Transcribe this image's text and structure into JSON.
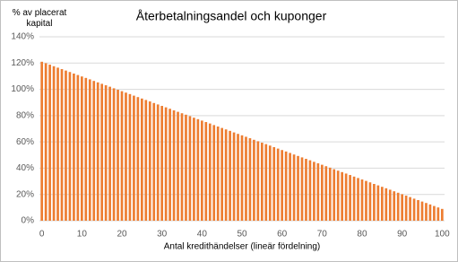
{
  "chart_data": {
    "type": "bar",
    "title": "Återbetalningsandel och kuponger",
    "ylabel": "% av placerat kapital",
    "xlabel": "Antal kredithändelser (lineär fördelning)",
    "color": "#ed7d31",
    "grid": true,
    "x": [
      0,
      1,
      2,
      3,
      4,
      5,
      6,
      7,
      8,
      9,
      10,
      11,
      12,
      13,
      14,
      15,
      16,
      17,
      18,
      19,
      20,
      21,
      22,
      23,
      24,
      25,
      26,
      27,
      28,
      29,
      30,
      31,
      32,
      33,
      34,
      35,
      36,
      37,
      38,
      39,
      40,
      41,
      42,
      43,
      44,
      45,
      46,
      47,
      48,
      49,
      50,
      51,
      52,
      53,
      54,
      55,
      56,
      57,
      58,
      59,
      60,
      61,
      62,
      63,
      64,
      65,
      66,
      67,
      68,
      69,
      70,
      71,
      72,
      73,
      74,
      75,
      76,
      77,
      78,
      79,
      80,
      81,
      82,
      83,
      84,
      85,
      86,
      87,
      88,
      89,
      90,
      91,
      92,
      93,
      94,
      95,
      96,
      97,
      98,
      99,
      100
    ],
    "values": [
      121.0,
      119.9,
      118.8,
      117.6,
      116.5,
      115.4,
      114.3,
      113.2,
      112.0,
      110.9,
      109.8,
      108.7,
      107.6,
      106.4,
      105.3,
      104.2,
      103.1,
      102.0,
      100.8,
      99.7,
      98.6,
      97.5,
      96.4,
      95.2,
      94.1,
      93.0,
      91.9,
      90.8,
      89.6,
      88.5,
      87.4,
      86.3,
      85.2,
      84.0,
      82.9,
      81.8,
      80.7,
      79.6,
      78.4,
      77.3,
      76.2,
      75.1,
      74.0,
      72.8,
      71.7,
      70.6,
      69.5,
      68.4,
      67.2,
      66.1,
      65.0,
      63.9,
      62.8,
      61.6,
      60.5,
      59.4,
      58.3,
      57.2,
      56.0,
      54.9,
      53.8,
      52.7,
      51.6,
      50.4,
      49.3,
      48.2,
      47.1,
      46.0,
      44.8,
      43.7,
      42.6,
      41.5,
      40.4,
      39.2,
      38.1,
      37.0,
      35.9,
      34.8,
      33.6,
      32.5,
      31.4,
      30.3,
      29.2,
      28.0,
      26.9,
      25.8,
      24.7,
      23.6,
      22.4,
      21.3,
      20.2,
      19.1,
      18.0,
      16.8,
      15.7,
      14.6,
      13.5,
      12.4,
      11.2,
      10.1,
      9.0
    ],
    "xlim": [
      -0.6,
      100.6
    ],
    "xticks": [
      0,
      10,
      20,
      30,
      40,
      50,
      60,
      70,
      80,
      90,
      100
    ],
    "ylim": [
      0,
      140
    ],
    "yticks": [
      {
        "value": 0,
        "label": "0%"
      },
      {
        "value": 20,
        "label": "20%"
      },
      {
        "value": 40,
        "label": "40%"
      },
      {
        "value": 60,
        "label": "60%"
      },
      {
        "value": 80,
        "label": "80%"
      },
      {
        "value": 100,
        "label": "100%"
      },
      {
        "value": 120,
        "label": "120%"
      },
      {
        "value": 140,
        "label": "140%"
      }
    ]
  }
}
